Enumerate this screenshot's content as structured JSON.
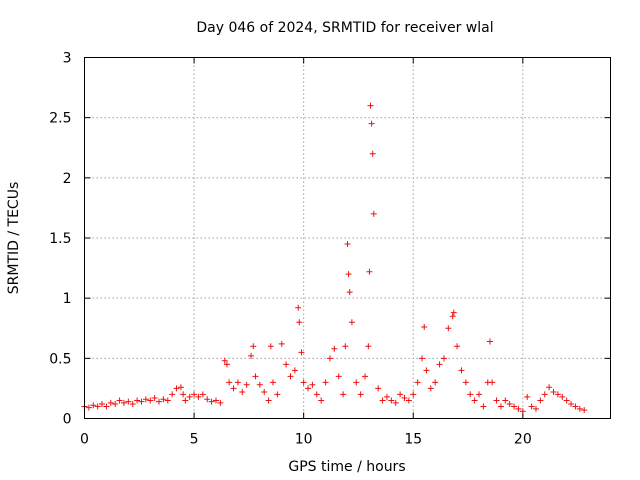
{
  "chart_data": {
    "type": "scatter",
    "title": "Day 046 of 2024, SRMTID for receiver wlal",
    "xlabel": "GPS time / hours",
    "ylabel": "SRMTID / TECUs",
    "xlim": [
      0,
      24
    ],
    "ylim": [
      0,
      3
    ],
    "grid": true,
    "marker": "plus",
    "marker_color": "#ee1111",
    "x_ticks": [
      0,
      5,
      10,
      15,
      20
    ],
    "y_ticks": [
      0,
      0.5,
      1,
      1.5,
      2,
      2.5,
      3
    ],
    "x_tick_labels": [
      "0",
      "5",
      "10",
      "15",
      "20"
    ],
    "y_tick_labels": [
      "0",
      "0.5",
      "1",
      "1.5",
      "2",
      "2.5",
      "3"
    ],
    "series": [
      {
        "name": "SRMTID",
        "x": [
          0.0,
          0.2,
          0.4,
          0.6,
          0.8,
          1.0,
          1.2,
          1.4,
          1.6,
          1.8,
          2.0,
          2.2,
          2.4,
          2.6,
          2.8,
          3.0,
          3.2,
          3.4,
          3.6,
          3.8,
          4.0,
          4.2,
          4.4,
          4.5,
          4.6,
          4.8,
          5.0,
          5.2,
          5.4,
          5.6,
          5.8,
          6.0,
          6.2,
          6.4,
          6.5,
          6.6,
          6.8,
          7.0,
          7.2,
          7.4,
          7.6,
          7.7,
          7.8,
          8.0,
          8.2,
          8.4,
          8.5,
          8.6,
          8.8,
          9.0,
          9.2,
          9.4,
          9.6,
          9.75,
          9.8,
          9.9,
          10.0,
          10.2,
          10.4,
          10.6,
          10.8,
          11.0,
          11.2,
          11.4,
          11.6,
          11.8,
          11.9,
          12.0,
          12.05,
          12.1,
          12.2,
          12.4,
          12.6,
          12.8,
          12.95,
          13.0,
          13.05,
          13.1,
          13.15,
          13.2,
          13.4,
          13.6,
          13.8,
          14.0,
          14.2,
          14.4,
          14.6,
          14.8,
          15.0,
          15.2,
          15.4,
          15.5,
          15.6,
          15.8,
          16.0,
          16.2,
          16.4,
          16.6,
          16.8,
          16.85,
          17.0,
          17.2,
          17.4,
          17.6,
          17.8,
          18.0,
          18.2,
          18.4,
          18.5,
          18.6,
          18.8,
          19.0,
          19.2,
          19.4,
          19.6,
          19.8,
          20.0,
          20.2,
          20.4,
          20.6,
          20.8,
          21.0,
          21.2,
          21.4,
          21.6,
          21.8,
          22.0,
          22.2,
          22.4,
          22.6,
          22.8
        ],
        "y": [
          0.1,
          0.09,
          0.11,
          0.1,
          0.12,
          0.1,
          0.13,
          0.12,
          0.15,
          0.13,
          0.14,
          0.12,
          0.15,
          0.14,
          0.16,
          0.15,
          0.17,
          0.14,
          0.16,
          0.15,
          0.2,
          0.25,
          0.26,
          0.2,
          0.15,
          0.18,
          0.2,
          0.18,
          0.2,
          0.16,
          0.14,
          0.15,
          0.13,
          0.48,
          0.45,
          0.3,
          0.25,
          0.3,
          0.22,
          0.28,
          0.52,
          0.6,
          0.35,
          0.28,
          0.22,
          0.15,
          0.6,
          0.3,
          0.2,
          0.62,
          0.45,
          0.35,
          0.4,
          0.92,
          0.8,
          0.55,
          0.3,
          0.25,
          0.28,
          0.2,
          0.15,
          0.3,
          0.5,
          0.58,
          0.35,
          0.2,
          0.6,
          1.45,
          1.2,
          1.05,
          0.8,
          0.3,
          0.2,
          0.35,
          0.6,
          1.22,
          2.6,
          2.45,
          2.2,
          1.7,
          0.25,
          0.15,
          0.18,
          0.15,
          0.13,
          0.2,
          0.17,
          0.15,
          0.2,
          0.3,
          0.5,
          0.76,
          0.4,
          0.25,
          0.3,
          0.45,
          0.5,
          0.75,
          0.85,
          0.88,
          0.6,
          0.4,
          0.3,
          0.2,
          0.15,
          0.2,
          0.1,
          0.3,
          0.64,
          0.3,
          0.15,
          0.1,
          0.15,
          0.12,
          0.1,
          0.08,
          0.06,
          0.18,
          0.1,
          0.08,
          0.15,
          0.2,
          0.26,
          0.22,
          0.2,
          0.18,
          0.15,
          0.12,
          0.1,
          0.08,
          0.07
        ]
      }
    ]
  }
}
